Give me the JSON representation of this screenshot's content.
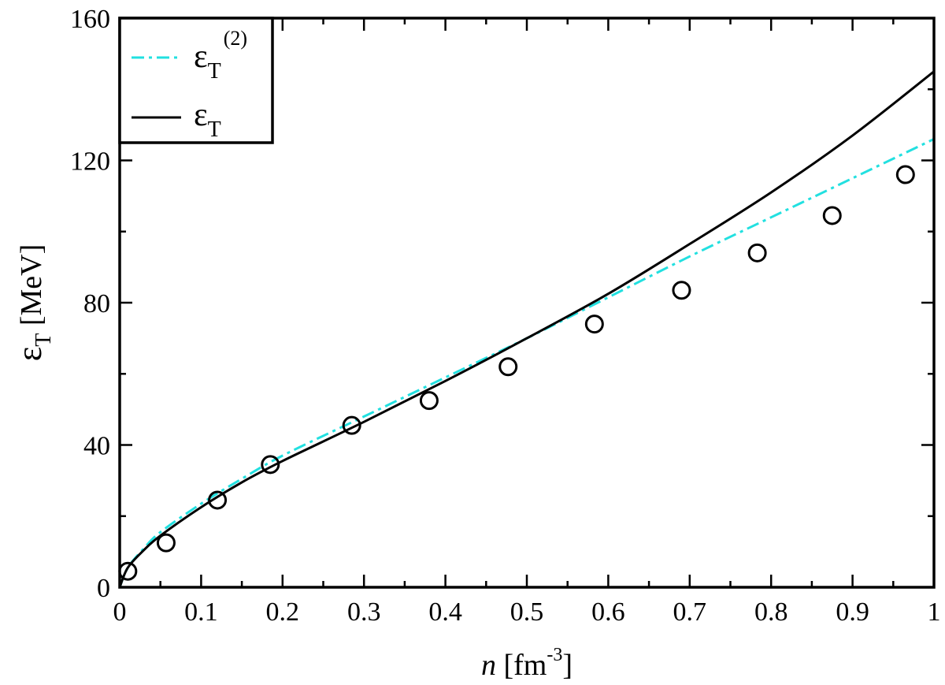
{
  "chart_data": {
    "type": "line",
    "title": "",
    "xlabel": {
      "main": "n",
      "unit_open": " [fm",
      "unit_sup": "-3",
      "unit_close": "]"
    },
    "ylabel": {
      "main": "ε",
      "sub": "T",
      "unit": " [MeV]"
    },
    "xlim": [
      0,
      1
    ],
    "ylim": [
      0,
      160
    ],
    "x_ticks": [
      {
        "value": 0,
        "label": "0"
      },
      {
        "value": 0.1,
        "label": "0.1"
      },
      {
        "value": 0.2,
        "label": "0.2"
      },
      {
        "value": 0.3,
        "label": "0.3"
      },
      {
        "value": 0.4,
        "label": "0.4"
      },
      {
        "value": 0.5,
        "label": "0.5"
      },
      {
        "value": 0.6,
        "label": "0.6"
      },
      {
        "value": 0.7,
        "label": "0.7"
      },
      {
        "value": 0.8,
        "label": "0.8"
      },
      {
        "value": 0.9,
        "label": "0.9"
      },
      {
        "value": 1,
        "label": "1"
      }
    ],
    "y_ticks": [
      {
        "value": 0,
        "label": "0"
      },
      {
        "value": 40,
        "label": "40"
      },
      {
        "value": 80,
        "label": "80"
      },
      {
        "value": 120,
        "label": "120"
      },
      {
        "value": 160,
        "label": "160"
      }
    ],
    "grid": false,
    "legend": {
      "placement": "top-left",
      "entries": [
        {
          "series": "eps_T2",
          "text": "ε",
          "sub": "T",
          "sup": "(2)"
        },
        {
          "series": "eps_T",
          "text": "ε",
          "sub": "T",
          "sup": ""
        }
      ]
    },
    "series": [
      {
        "id": "eps_T2",
        "style": "dash-dot",
        "color": "#22e0e0",
        "x": [
          0.0,
          0.01,
          0.03,
          0.05,
          0.1,
          0.15,
          0.2,
          0.3,
          0.4,
          0.5,
          0.6,
          0.7,
          0.8,
          0.9,
          1.0
        ],
        "y": [
          0.0,
          5.5,
          11.0,
          15.5,
          23.5,
          30.5,
          37.0,
          48.0,
          59.0,
          70.0,
          81.5,
          93.0,
          104.0,
          115.0,
          126.0
        ]
      },
      {
        "id": "eps_T",
        "style": "solid",
        "color": "#000000",
        "x": [
          0.0,
          0.01,
          0.03,
          0.05,
          0.1,
          0.15,
          0.2,
          0.3,
          0.4,
          0.5,
          0.6,
          0.7,
          0.8,
          0.9,
          1.0
        ],
        "y": [
          0.0,
          5.5,
          10.5,
          14.5,
          22.5,
          29.5,
          35.5,
          46.5,
          58.0,
          70.0,
          82.5,
          96.5,
          111.0,
          127.0,
          145.0
        ]
      },
      {
        "id": "reference",
        "style": "open-circle",
        "color": "#000000",
        "x": [
          0.01,
          0.057,
          0.12,
          0.185,
          0.285,
          0.38,
          0.477,
          0.583,
          0.69,
          0.783,
          0.875,
          0.965
        ],
        "y": [
          4.5,
          12.5,
          24.5,
          34.5,
          45.5,
          52.5,
          62.0,
          74.0,
          83.5,
          94.0,
          104.5,
          116.0
        ]
      }
    ]
  }
}
